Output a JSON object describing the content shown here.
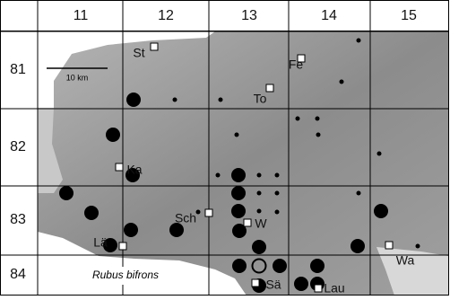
{
  "map": {
    "columns": [
      "11",
      "12",
      "13",
      "14",
      "15"
    ],
    "rows": [
      "81",
      "82",
      "83",
      "84"
    ],
    "places": [
      "St",
      "Fe",
      "To",
      "Ka",
      "Sch",
      "W",
      "Lä",
      "Wa",
      "Sä",
      "Lau"
    ],
    "scale": "10 km",
    "species": "Rubus bifrons"
  }
}
